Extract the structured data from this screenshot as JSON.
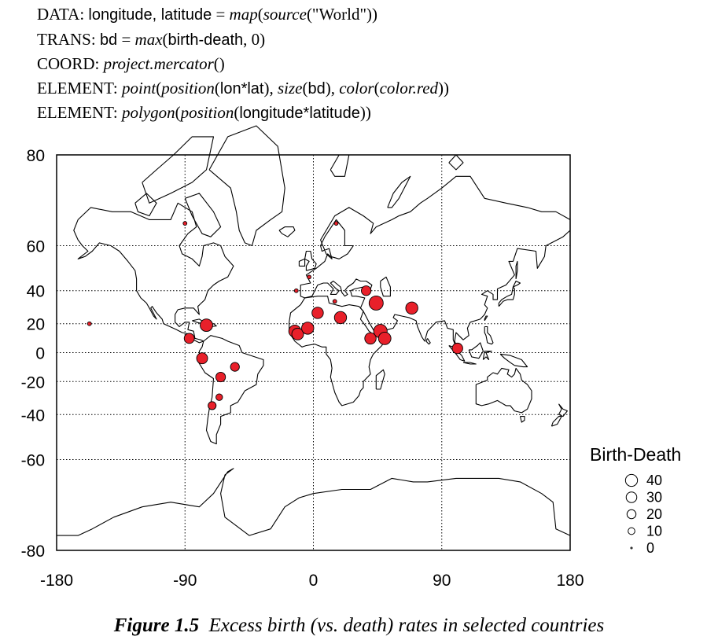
{
  "spec": {
    "lines": [
      {
        "kw": "DATA:",
        "parts": [
          {
            "t": "longitude, latitude",
            "s": "sans"
          },
          {
            "t": " = ",
            "s": ""
          },
          {
            "t": "map",
            "s": "it"
          },
          {
            "t": "(",
            "s": ""
          },
          {
            "t": "source",
            "s": "it"
          },
          {
            "t": "(\"World\"))",
            "s": ""
          }
        ]
      },
      {
        "kw": "TRANS:",
        "parts": [
          {
            "t": "bd",
            "s": "sans"
          },
          {
            "t": " = ",
            "s": ""
          },
          {
            "t": "max",
            "s": "it"
          },
          {
            "t": "(",
            "s": ""
          },
          {
            "t": "birth-death",
            "s": "sans"
          },
          {
            "t": ", 0)",
            "s": ""
          }
        ]
      },
      {
        "kw": "COORD:",
        "parts": [
          {
            "t": "project.mercator",
            "s": "it"
          },
          {
            "t": "()",
            "s": ""
          }
        ]
      },
      {
        "kw": "ELEMENT:",
        "parts": [
          {
            "t": "point",
            "s": "it"
          },
          {
            "t": "(",
            "s": ""
          },
          {
            "t": "position",
            "s": "it"
          },
          {
            "t": "(",
            "s": ""
          },
          {
            "t": "lon*lat",
            "s": "sans"
          },
          {
            "t": "), ",
            "s": ""
          },
          {
            "t": "size",
            "s": "it"
          },
          {
            "t": "(",
            "s": ""
          },
          {
            "t": "bd",
            "s": "sans"
          },
          {
            "t": "), ",
            "s": ""
          },
          {
            "t": "color",
            "s": "it"
          },
          {
            "t": "(",
            "s": ""
          },
          {
            "t": "color.red",
            "s": "it"
          },
          {
            "t": "))",
            "s": ""
          }
        ]
      },
      {
        "kw": "ELEMENT:",
        "parts": [
          {
            "t": "polygon",
            "s": "it"
          },
          {
            "t": "(",
            "s": ""
          },
          {
            "t": "position",
            "s": "it"
          },
          {
            "t": "(",
            "s": ""
          },
          {
            "t": "longitude*latitude",
            "s": "sans"
          },
          {
            "t": "))",
            "s": ""
          }
        ]
      }
    ]
  },
  "chart_data": {
    "type": "scatter",
    "projection": "mercator",
    "xlim": [
      -180,
      180
    ],
    "ylim": [
      -80,
      80
    ],
    "x_ticks": [
      -180,
      -90,
      0,
      90,
      180
    ],
    "y_ticks": [
      80,
      60,
      40,
      20,
      0,
      -20,
      -40,
      -60,
      -80
    ],
    "grid": true,
    "grid_style": "dotted",
    "point_color": "#e8202a",
    "map_color": "#000000",
    "legend": {
      "title": "Birth-Death",
      "placement": "right",
      "entries": [
        40,
        30,
        20,
        10,
        0
      ]
    },
    "points": [
      {
        "lon": -75,
        "lat": 19,
        "bd": 30
      },
      {
        "lon": -87,
        "lat": 10,
        "bd": 18
      },
      {
        "lon": -78,
        "lat": -4,
        "bd": 22
      },
      {
        "lon": -65,
        "lat": -17,
        "bd": 16
      },
      {
        "lon": -55,
        "lat": -10,
        "bd": 13
      },
      {
        "lon": -66,
        "lat": -30,
        "bd": 6
      },
      {
        "lon": -71,
        "lat": -35,
        "bd": 10
      },
      {
        "lon": -13,
        "lat": 15,
        "bd": 28
      },
      {
        "lon": -11,
        "lat": 13,
        "bd": 26
      },
      {
        "lon": -4,
        "lat": 17,
        "bd": 28
      },
      {
        "lon": 3,
        "lat": 27,
        "bd": 24
      },
      {
        "lon": 19,
        "lat": 24,
        "bd": 28
      },
      {
        "lon": 37,
        "lat": 40,
        "bd": 16
      },
      {
        "lon": 44,
        "lat": 33,
        "bd": 40
      },
      {
        "lon": 47,
        "lat": 15,
        "bd": 36
      },
      {
        "lon": 50,
        "lat": 10,
        "bd": 30
      },
      {
        "lon": 40,
        "lat": 10,
        "bd": 24
      },
      {
        "lon": 69,
        "lat": 30,
        "bd": 28
      },
      {
        "lon": 101,
        "lat": 3,
        "bd": 20
      },
      {
        "lon": -12,
        "lat": 40,
        "bd": 1
      },
      {
        "lon": -90,
        "lat": 67,
        "bd": 1
      },
      {
        "lon": -157,
        "lat": 20,
        "bd": 1
      },
      {
        "lon": 16,
        "lat": 67,
        "bd": 1
      },
      {
        "lon": -3,
        "lat": 47,
        "bd": 1
      },
      {
        "lon": 15,
        "lat": 34,
        "bd": 1
      }
    ]
  },
  "caption": {
    "label": "Figure 1.5",
    "text": "Excess birth (vs. death) rates in selected countries"
  }
}
